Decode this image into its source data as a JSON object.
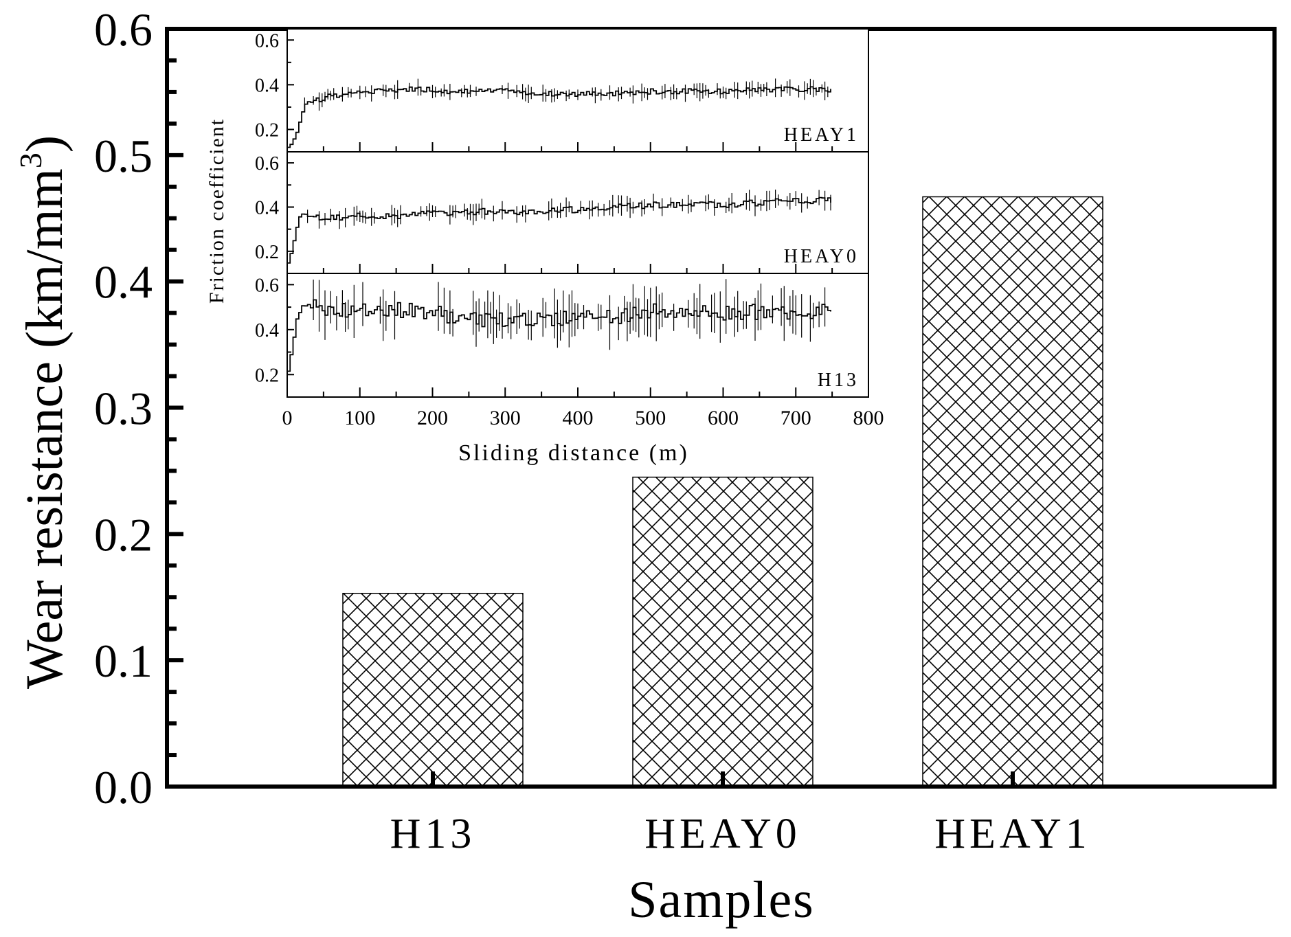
{
  "chart_data": [
    {
      "type": "bar",
      "title": "",
      "xlabel": "Samples",
      "ylabel": "Wear resistance (km/mm",
      "ylabel_sup": "3",
      "ylabel_close": ")",
      "categories": [
        "H13",
        "HEAY0",
        "HEAY1"
      ],
      "values": [
        0.153,
        0.245,
        0.467
      ],
      "ylim": [
        0.0,
        0.6
      ],
      "yticks": [
        "0.0",
        "0.1",
        "0.2",
        "0.3",
        "0.4",
        "0.5",
        "0.6"
      ],
      "bar_pattern": "crosshatch",
      "grid": false
    },
    {
      "type": "line",
      "title": "",
      "xlabel": "Sliding distance (m)",
      "ylabel": "Friction coefficient",
      "xlim": [
        0,
        800
      ],
      "xticks": [
        "0",
        "100",
        "200",
        "300",
        "400",
        "500",
        "600",
        "700",
        "800"
      ],
      "grid": false,
      "panels": [
        {
          "name": "HEAY1",
          "ylim": [
            0.1,
            0.65
          ],
          "yticks": [
            "0.2",
            "0.4",
            "0.6"
          ],
          "x": [
            0,
            5,
            10,
            15,
            20,
            25,
            30,
            40,
            50,
            60,
            80,
            100,
            120,
            150,
            180,
            200,
            220,
            250,
            300,
            350,
            400,
            450,
            500,
            550,
            600,
            650,
            700,
            750
          ],
          "y": [
            0.12,
            0.14,
            0.17,
            0.22,
            0.28,
            0.32,
            0.33,
            0.33,
            0.34,
            0.35,
            0.36,
            0.37,
            0.37,
            0.38,
            0.38,
            0.38,
            0.37,
            0.37,
            0.37,
            0.36,
            0.36,
            0.36,
            0.37,
            0.37,
            0.37,
            0.38,
            0.38,
            0.38
          ]
        },
        {
          "name": "HEAY0",
          "ylim": [
            0.1,
            0.65
          ],
          "yticks": [
            "0.2",
            "0.4",
            "0.6"
          ],
          "x": [
            0,
            5,
            10,
            15,
            20,
            30,
            40,
            60,
            80,
            100,
            150,
            200,
            250,
            300,
            350,
            400,
            450,
            500,
            550,
            600,
            650,
            700,
            750
          ],
          "y": [
            0.15,
            0.2,
            0.28,
            0.35,
            0.37,
            0.36,
            0.35,
            0.35,
            0.35,
            0.36,
            0.36,
            0.37,
            0.38,
            0.38,
            0.38,
            0.39,
            0.4,
            0.41,
            0.41,
            0.41,
            0.42,
            0.43,
            0.43
          ]
        },
        {
          "name": "H13",
          "ylim": [
            0.1,
            0.65
          ],
          "yticks": [
            "0.2",
            "0.4",
            "0.6"
          ],
          "x": [
            0,
            5,
            10,
            15,
            20,
            30,
            50,
            80,
            100,
            150,
            200,
            250,
            300,
            350,
            400,
            450,
            500,
            550,
            600,
            650,
            700,
            750
          ],
          "y": [
            0.22,
            0.3,
            0.42,
            0.48,
            0.5,
            0.52,
            0.5,
            0.48,
            0.48,
            0.49,
            0.48,
            0.44,
            0.45,
            0.44,
            0.46,
            0.46,
            0.48,
            0.48,
            0.47,
            0.48,
            0.48,
            0.48
          ]
        }
      ]
    }
  ]
}
